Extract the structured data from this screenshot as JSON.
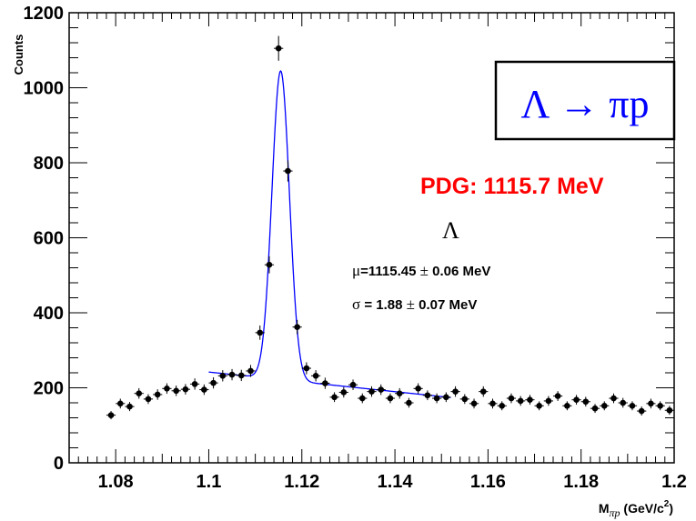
{
  "chart_data": {
    "type": "scatter",
    "xlabel": {
      "main": "M",
      "sub": "πp",
      "unit": " (GeV/c",
      "sup": "2",
      "close": ")"
    },
    "ylabel": "Counts",
    "xlim": [
      1.07,
      1.2
    ],
    "ylim": [
      0,
      1200
    ],
    "x_ticks": [
      "1.08",
      "1.1",
      "1.12",
      "1.14",
      "1.16",
      "1.18",
      "1.2"
    ],
    "x_tick_values": [
      1.08,
      1.1,
      1.12,
      1.14,
      1.16,
      1.18,
      1.2
    ],
    "y_ticks": [
      "0",
      "200",
      "400",
      "600",
      "800",
      "1000",
      "1200"
    ],
    "y_tick_values": [
      0,
      200,
      400,
      600,
      800,
      1000,
      1200
    ],
    "grid": false,
    "series": [
      {
        "kind": "data-points-with-errors",
        "x": [
          1.079,
          1.081,
          1.083,
          1.085,
          1.087,
          1.089,
          1.091,
          1.093,
          1.095,
          1.097,
          1.099,
          1.101,
          1.103,
          1.105,
          1.107,
          1.109,
          1.111,
          1.113,
          1.115,
          1.117,
          1.119,
          1.121,
          1.123,
          1.125,
          1.127,
          1.129,
          1.131,
          1.133,
          1.135,
          1.137,
          1.139,
          1.141,
          1.143,
          1.145,
          1.147,
          1.149,
          1.151,
          1.153,
          1.155,
          1.157,
          1.159,
          1.161,
          1.163,
          1.165,
          1.167,
          1.169,
          1.171,
          1.173,
          1.175,
          1.177,
          1.179,
          1.181,
          1.183,
          1.185,
          1.187,
          1.189,
          1.191,
          1.193,
          1.195,
          1.197,
          1.199
        ],
        "y": [
          127,
          158,
          150,
          185,
          170,
          182,
          198,
          192,
          196,
          210,
          195,
          213,
          232,
          235,
          233,
          245,
          347,
          528,
          1105,
          778,
          362,
          252,
          232,
          212,
          175,
          188,
          208,
          172,
          190,
          195,
          172,
          185,
          160,
          198,
          180,
          172,
          175,
          190,
          170,
          158,
          190,
          158,
          152,
          172,
          165,
          168,
          152,
          165,
          178,
          152,
          168,
          163,
          145,
          152,
          172,
          160,
          152,
          138,
          158,
          152,
          140
        ],
        "y_err": [
          11,
          13,
          12,
          14,
          13,
          14,
          14,
          14,
          14,
          15,
          14,
          15,
          15,
          15,
          15,
          16,
          19,
          23,
          33,
          28,
          19,
          16,
          15,
          15,
          13,
          14,
          14,
          13,
          14,
          14,
          13,
          14,
          13,
          14,
          13,
          13,
          13,
          14,
          13,
          13,
          14,
          13,
          12,
          13,
          13,
          13,
          12,
          13,
          13,
          12,
          13,
          13,
          12,
          12,
          13,
          13,
          12,
          12,
          13,
          12,
          12
        ]
      },
      {
        "kind": "fit-curve",
        "name": "fit",
        "color": "#0000ff",
        "x_range": [
          1.1,
          1.152
        ],
        "peak_mean": 1.11545,
        "peak_sigma": 0.00188,
        "peak_height": 823,
        "bg_start": 242,
        "bg_end": 174
      }
    ],
    "annotations": {
      "reaction_box": {
        "text": "Λ → πp",
        "color": "#0000ff",
        "border": "#000000"
      },
      "pdg": {
        "text": "PDG: 1115.7 MeV",
        "color": "#ff0000"
      },
      "lambda_label": "Λ",
      "mu_label": {
        "symbol": "μ",
        "text": "=1115.45 ",
        "pm": "±",
        "rest": " 0.06 MeV"
      },
      "sigma_label": {
        "symbol": "σ",
        "text": " = 1.88 ",
        "pm": "±",
        "rest": " 0.07 MeV"
      }
    }
  }
}
